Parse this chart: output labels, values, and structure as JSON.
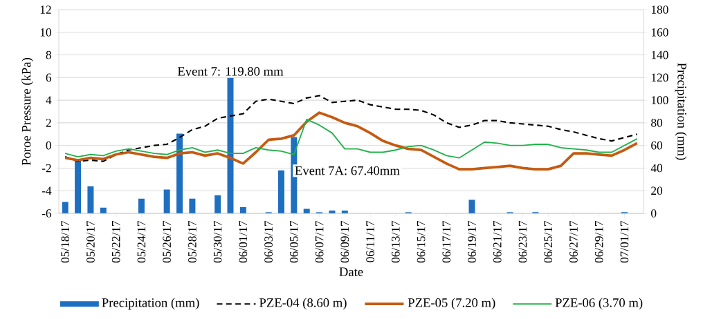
{
  "chart_data": {
    "type": "line",
    "xlabel": "Date",
    "ylabel": "Poroe Pressure (kPa)",
    "y2label": "Precipitation (mm)",
    "categories": [
      "05/18/17",
      null,
      "05/20/17",
      null,
      "05/22/17",
      null,
      "05/24/17",
      null,
      "05/26/17",
      null,
      "05/28/17",
      null,
      "05/30/17",
      null,
      "06/01/17",
      null,
      "06/03/17",
      null,
      "06/05/17",
      null,
      "06/07/17",
      null,
      "06/09/17",
      null,
      "06/11/17",
      null,
      "06/13/17",
      null,
      "06/15/17",
      null,
      "06/17/17",
      null,
      "06/19/17",
      null,
      "06/21/17",
      null,
      "06/23/17",
      null,
      "06/25/17",
      null,
      "06/27/17",
      null,
      "06/29/17",
      null,
      "07/01/17",
      null
    ],
    "series": [
      {
        "name": "Precipitation (mm)",
        "type": "bar",
        "axis": "y2",
        "color": "#1f6fc0",
        "values": [
          10,
          48,
          24,
          5,
          0,
          0,
          13,
          0,
          21,
          70.5,
          13,
          0,
          16,
          119.8,
          5.5,
          0,
          1,
          38,
          67.4,
          4,
          1,
          2.5,
          2.5,
          0,
          0,
          0,
          0,
          1,
          0,
          0,
          0,
          0,
          12,
          0,
          0,
          1,
          0,
          1,
          0,
          0,
          0,
          0,
          0,
          0,
          1,
          0
        ]
      },
      {
        "name": "PZE-04 (8.60 m)",
        "color": "#000000",
        "line_style": "dashed",
        "values": [
          -1.0,
          -1.4,
          -1.3,
          -1.4,
          -0.8,
          -0.4,
          -0.2,
          0,
          0.1,
          0.7,
          1.4,
          1.7,
          2.4,
          2.6,
          2.8,
          3.9,
          4.1,
          3.9,
          3.7,
          4.2,
          4.4,
          3.8,
          3.9,
          4.0,
          3.6,
          3.4,
          3.2,
          3.2,
          3.1,
          2.7,
          2.0,
          1.6,
          1.8,
          2.2,
          2.2,
          2.0,
          1.9,
          1.8,
          1.7,
          1.4,
          1.2,
          0.9,
          0.6,
          0.4,
          0.7,
          1.0
        ]
      },
      {
        "name": "PZE-05 (7.20 m)",
        "color": "#c55a11",
        "line_style": "solid",
        "values": [
          -1.1,
          -1.3,
          -1.1,
          -1.2,
          -0.8,
          -0.6,
          -0.8,
          -1.0,
          -1.1,
          -0.7,
          -0.6,
          -0.9,
          -0.7,
          -1.1,
          -1.6,
          -0.6,
          0.5,
          0.6,
          0.9,
          2.1,
          2.9,
          2.5,
          2.0,
          1.7,
          1.1,
          0.4,
          0,
          -0.3,
          -0.4,
          -1.0,
          -1.6,
          -2.1,
          -2.1,
          -2.0,
          -1.9,
          -1.8,
          -2.0,
          -2.1,
          -2.1,
          -1.8,
          -0.7,
          -0.7,
          -0.8,
          -0.9,
          -0.4,
          0.2
        ]
      },
      {
        "name": "PZE-06 (3.70 m)",
        "color": "#22b14c",
        "line_style": "solid",
        "values": [
          -0.7,
          -1.0,
          -0.8,
          -0.9,
          -0.5,
          -0.3,
          -0.5,
          -0.7,
          -0.8,
          -0.4,
          -0.2,
          -0.6,
          -0.4,
          -0.7,
          -0.7,
          -0.2,
          -0.4,
          -0.5,
          -0.8,
          2.3,
          1.8,
          1.1,
          -0.3,
          -0.3,
          -0.6,
          -0.6,
          -0.4,
          -0.1,
          0,
          -0.4,
          -0.9,
          -1.1,
          -0.4,
          0.3,
          0.2,
          0,
          0,
          0.1,
          0.1,
          -0.2,
          -0.3,
          -0.4,
          -0.6,
          -0.6,
          0,
          0.6
        ]
      }
    ],
    "ylim": [
      -6,
      12
    ],
    "yticks": [
      -6,
      -4,
      -2,
      0,
      2,
      4,
      6,
      8,
      10,
      12
    ],
    "y2lim": [
      0,
      180
    ],
    "y2ticks": [
      0,
      20,
      40,
      60,
      80,
      100,
      120,
      140,
      160,
      180
    ],
    "annotations": [
      "Event 7: 119.80 mm",
      "Event 7A: 67.40mm"
    ],
    "grid": "y",
    "legend": "bottom",
    "marker": "none"
  }
}
